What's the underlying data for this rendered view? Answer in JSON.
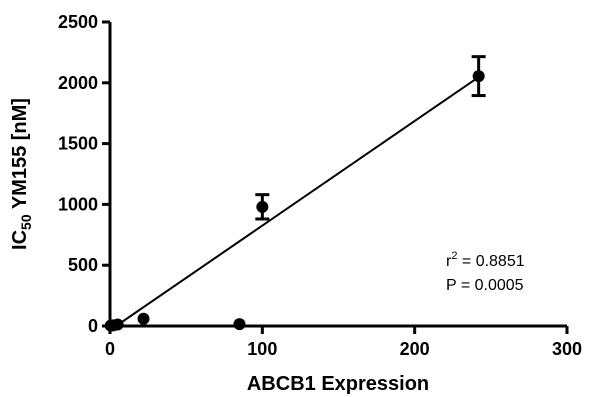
{
  "chart_data": {
    "type": "scatter",
    "xlabel": "ABCB1 Expression",
    "ylabel_main": "IC",
    "ylabel_sub": "50",
    "ylabel_rest": " YM155 [nM]",
    "xlim": [
      0,
      300
    ],
    "ylim": [
      0,
      2500
    ],
    "xticks": [
      0,
      100,
      200,
      300
    ],
    "yticks": [
      0,
      500,
      1000,
      1500,
      2000,
      2500
    ],
    "grid": false,
    "points": [
      {
        "x": 0.5,
        "y": 3
      },
      {
        "x": 2,
        "y": 5
      },
      {
        "x": 5,
        "y": 12
      },
      {
        "x": 22,
        "y": 60
      },
      {
        "x": 85,
        "y": 15
      },
      {
        "x": 100,
        "y": 980,
        "err": 100
      },
      {
        "x": 242,
        "y": 2055,
        "err": 160
      }
    ],
    "fit_line": {
      "x": [
        4,
        240
      ],
      "y": [
        0,
        2030
      ]
    },
    "annotations": {
      "r2_prefix": "r",
      "r2_sup": "2",
      "r2_rest": " = 0.8851",
      "p_value": "P = 0.0005"
    }
  }
}
